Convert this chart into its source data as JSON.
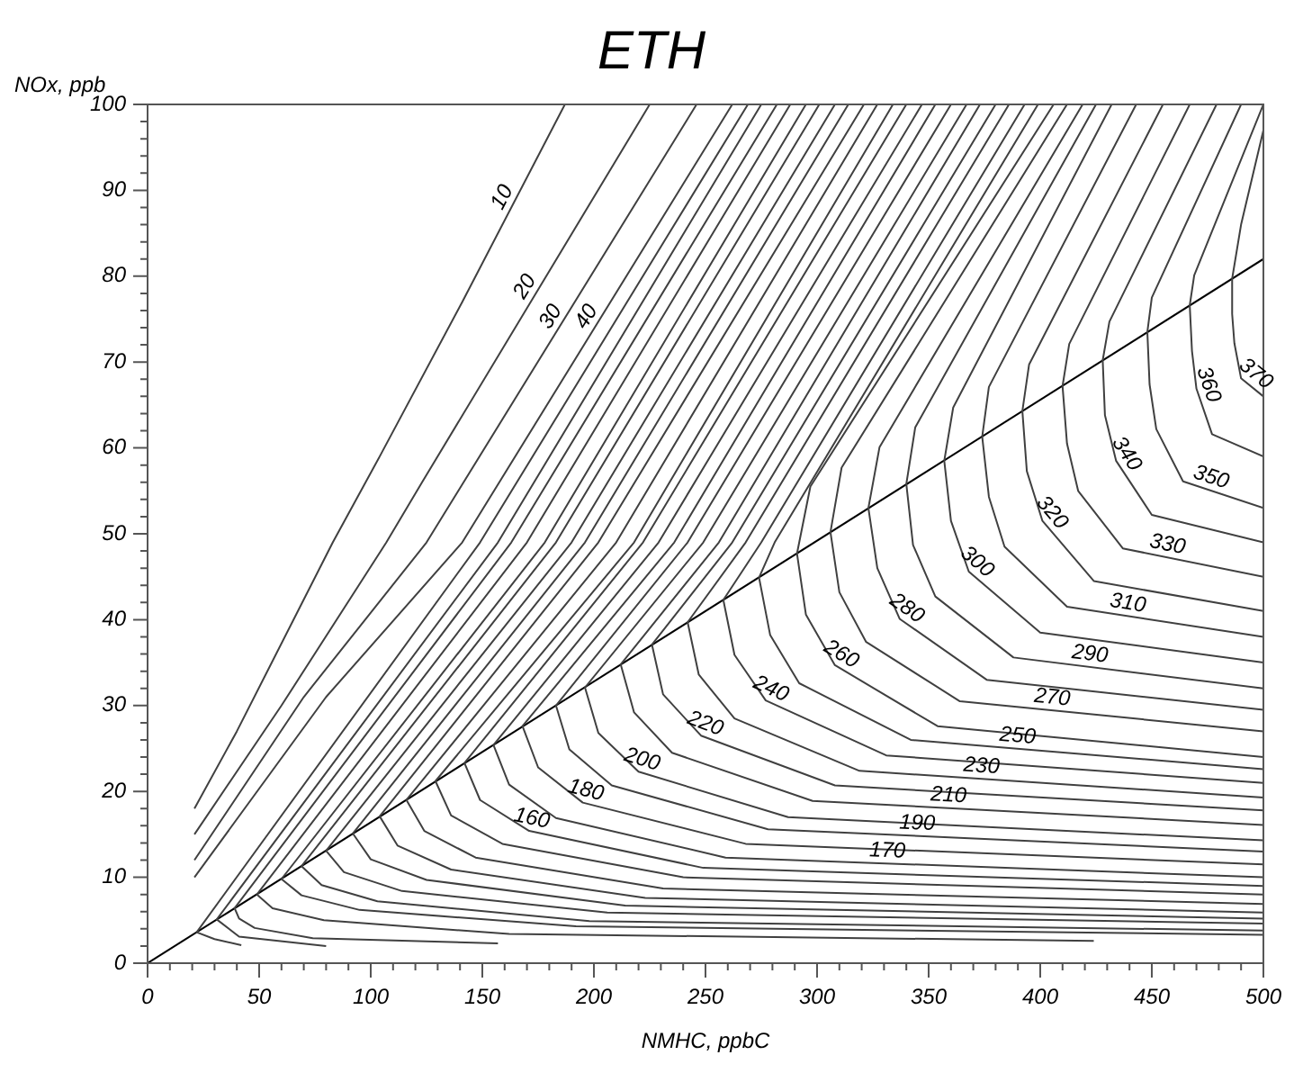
{
  "chart_data": {
    "type": "line",
    "title": "ETH",
    "xlabel": "NMHC, ppbC",
    "ylabel": "NOx, ppb",
    "xlim": [
      0,
      500
    ],
    "ylim": [
      0,
      100
    ],
    "xticks": [
      0,
      {
        "value": 10,
        "label": null
      },
      {
        "value": 20,
        "label": null
      },
      {
        "value": 30,
        "label": null
      },
      {
        "value": 40,
        "label": null
      },
      50,
      {
        "value": 60,
        "label": null
      },
      {
        "value": 70,
        "label": null
      },
      {
        "value": 80,
        "label": null
      },
      {
        "value": 90,
        "label": null
      },
      100,
      {
        "value": 110,
        "label": null
      },
      {
        "value": 120,
        "label": null
      },
      {
        "value": 130,
        "label": null
      },
      {
        "value": 140,
        "label": null
      },
      150,
      {
        "value": 160,
        "label": null
      },
      {
        "value": 170,
        "label": null
      },
      {
        "value": 180,
        "label": null
      },
      {
        "value": 190,
        "label": null
      },
      200,
      {
        "value": 210,
        "label": null
      },
      {
        "value": 220,
        "label": null
      },
      {
        "value": 230,
        "label": null
      },
      {
        "value": 240,
        "label": null
      },
      250,
      {
        "value": 260,
        "label": null
      },
      {
        "value": 270,
        "label": null
      },
      {
        "value": 280,
        "label": null
      },
      {
        "value": 290,
        "label": null
      },
      300,
      {
        "value": 310,
        "label": null
      },
      {
        "value": 320,
        "label": null
      },
      {
        "value": 330,
        "label": null
      },
      {
        "value": 340,
        "label": null
      },
      350,
      {
        "value": 360,
        "label": null
      },
      {
        "value": 370,
        "label": null
      },
      {
        "value": 380,
        "label": null
      },
      {
        "value": 390,
        "label": null
      },
      400,
      {
        "value": 410,
        "label": null
      },
      {
        "value": 420,
        "label": null
      },
      {
        "value": 430,
        "label": null
      },
      {
        "value": 440,
        "label": null
      },
      450,
      {
        "value": 460,
        "label": null
      },
      {
        "value": 470,
        "label": null
      },
      {
        "value": 480,
        "label": null
      },
      {
        "value": 490,
        "label": null
      },
      500
    ],
    "yticks": [
      0,
      {
        "value": 2,
        "label": null
      },
      {
        "value": 4,
        "label": null
      },
      {
        "value": 6,
        "label": null
      },
      {
        "value": 8,
        "label": null
      },
      10,
      {
        "value": 12,
        "label": null
      },
      {
        "value": 14,
        "label": null
      },
      {
        "value": 16,
        "label": null
      },
      {
        "value": 18,
        "label": null
      },
      20,
      {
        "value": 22,
        "label": null
      },
      {
        "value": 24,
        "label": null
      },
      {
        "value": 26,
        "label": null
      },
      {
        "value": 28,
        "label": null
      },
      30,
      {
        "value": 32,
        "label": null
      },
      {
        "value": 34,
        "label": null
      },
      {
        "value": 36,
        "label": null
      },
      {
        "value": 38,
        "label": null
      },
      40,
      {
        "value": 42,
        "label": null
      },
      {
        "value": 44,
        "label": null
      },
      {
        "value": 46,
        "label": null
      },
      {
        "value": 48,
        "label": null
      },
      50,
      {
        "value": 52,
        "label": null
      },
      {
        "value": 54,
        "label": null
      },
      {
        "value": 56,
        "label": null
      },
      {
        "value": 58,
        "label": null
      },
      60,
      {
        "value": 62,
        "label": null
      },
      {
        "value": 64,
        "label": null
      },
      {
        "value": 66,
        "label": null
      },
      {
        "value": 68,
        "label": null
      },
      70,
      {
        "value": 72,
        "label": null
      },
      {
        "value": 74,
        "label": null
      },
      {
        "value": 76,
        "label": null
      },
      {
        "value": 78,
        "label": null
      },
      80,
      {
        "value": 82,
        "label": null
      },
      {
        "value": 84,
        "label": null
      },
      {
        "value": 86,
        "label": null
      },
      {
        "value": 88,
        "label": null
      },
      90,
      {
        "value": 92,
        "label": null
      },
      {
        "value": 94,
        "label": null
      },
      {
        "value": 96,
        "label": null
      },
      {
        "value": 98,
        "label": null
      },
      100
    ],
    "grid": false,
    "legend": false,
    "marker": "none",
    "line_style": "solid",
    "series": [
      {
        "name": "10",
        "color": "#404040",
        "x": [
          187,
          141,
          104,
          83,
          40,
          21
        ],
        "values": [
          100,
          77,
          59,
          49,
          27,
          18
        ]
      },
      {
        "name": "20",
        "color": "#404040",
        "x": [
          225,
          123,
          107,
          60,
          21
        ],
        "values": [
          100,
          56,
          49,
          30,
          15
        ]
      },
      {
        "name": "30",
        "color": "#404040",
        "x": [
          246,
          125,
          70,
          21
        ],
        "values": [
          100,
          49,
          31,
          12
        ]
      },
      {
        "name": "40",
        "color": "#404040",
        "x": [
          262,
          141,
          80,
          21
        ],
        "values": [
          100,
          49,
          31,
          10
        ]
      },
      {
        "color": "#404040",
        "x": [
          269,
          149,
          22,
          30,
          42
        ],
        "values": [
          100,
          49,
          3.6,
          2.8,
          2.1
        ]
      },
      {
        "color": "#404040",
        "x": [
          275,
          157,
          31,
          41,
          80
        ],
        "values": [
          100,
          49,
          5.1,
          3.1,
          2.0
        ]
      },
      {
        "color": "#404040",
        "x": [
          282,
          163,
          39,
          41,
          48,
          74,
          157
        ],
        "values": [
          100,
          49,
          6.4,
          5.2,
          4.1,
          2.9,
          2.3
        ]
      },
      {
        "color": "#404040",
        "x": [
          288,
          170,
          49,
          56,
          79,
          162,
          424
        ],
        "values": [
          100,
          49,
          8.0,
          6.4,
          5.0,
          3.4,
          2.6
        ]
      },
      {
        "color": "#404040",
        "x": [
          295,
          178,
          60,
          69,
          95,
          192,
          500
        ],
        "values": [
          100,
          49,
          9.8,
          7.9,
          6.2,
          4.3,
          3.3
        ]
      },
      {
        "color": "#404040",
        "x": [
          301,
          183,
          69,
          78,
          103,
          198,
          500
        ],
        "values": [
          100,
          49,
          11.3,
          9.1,
          7.2,
          4.9,
          3.8
        ]
      },
      {
        "color": "#404040",
        "x": [
          308,
          190,
          80,
          88,
          114,
          206,
          500
        ],
        "values": [
          100,
          49,
          13.1,
          10.6,
          8.4,
          5.9,
          4.6
        ]
      },
      {
        "color": "#404040",
        "x": [
          314,
          196,
          92,
          100,
          125,
          214,
          500
        ],
        "values": [
          100,
          49,
          15.1,
          12.1,
          9.7,
          6.7,
          5.2
        ]
      },
      {
        "color": "#404040",
        "x": [
          321,
          202,
          104,
          112,
          136,
          223,
          500
        ],
        "values": [
          100,
          49,
          17.1,
          13.7,
          10.9,
          7.6,
          5.9
        ]
      },
      {
        "color": "#404040",
        "x": [
          327,
          210,
          116,
          124,
          147,
          231,
          500
        ],
        "values": [
          100,
          49,
          19.0,
          15.4,
          12.3,
          8.7,
          6.9
        ]
      },
      {
        "color": "#404040",
        "x": [
          334,
          218,
          129,
          136,
          159,
          240,
          500
        ],
        "values": [
          100,
          49,
          21.2,
          17.2,
          13.9,
          10.0,
          8
        ]
      },
      {
        "name": "160",
        "color": "#404040",
        "x": [
          340,
          222,
          142,
          149,
          171,
          249,
          500
        ],
        "values": [
          100,
          49,
          23.3,
          19.0,
          15.4,
          11.1,
          9
        ]
      },
      {
        "name": "170",
        "color": "#404040",
        "x": [
          347,
          229,
          155,
          162,
          183,
          259,
          500
        ],
        "values": [
          100,
          49,
          25.4,
          20.8,
          16.9,
          12.3,
          10
        ]
      },
      {
        "name": "180",
        "color": "#404040",
        "x": [
          353,
          236,
          168,
          175,
          195,
          268,
          500
        ],
        "values": [
          100,
          49,
          27.6,
          22.8,
          18.7,
          13.9,
          11.5
        ]
      },
      {
        "name": "190",
        "color": "#404040",
        "x": [
          360,
          242,
          183,
          189,
          208,
          278,
          500
        ],
        "values": [
          100,
          49,
          30.0,
          24.9,
          20.7,
          15.6,
          13
        ]
      },
      {
        "name": "200",
        "color": "#404040",
        "x": [
          367,
          249,
          196,
          202,
          220,
          287,
          500
        ],
        "values": [
          100,
          49,
          32.1,
          26.8,
          22.3,
          17.0,
          14.3
        ]
      },
      {
        "name": "210",
        "color": "#404040",
        "x": [
          373,
          256,
          212,
          218,
          235,
          298,
          500
        ],
        "values": [
          100,
          49,
          34.8,
          29.2,
          24.5,
          18.9,
          16.1
        ]
      },
      {
        "name": "220",
        "color": "#404040",
        "x": [
          380,
          262,
          226,
          231,
          248,
          308,
          500
        ],
        "values": [
          100,
          49,
          37.1,
          31.3,
          26.5,
          20.7,
          17.8
        ]
      },
      {
        "name": "230",
        "color": "#404040",
        "x": [
          386,
          268,
          242,
          247,
          263,
          319,
          500
        ],
        "values": [
          100,
          49,
          39.7,
          33.6,
          28.5,
          22.4,
          19.3
        ]
      },
      {
        "name": "240",
        "color": "#404040",
        "x": [
          393,
          275,
          258,
          263,
          277,
          331,
          500
        ],
        "values": [
          100,
          49,
          42.3,
          35.9,
          30.6,
          24.2,
          21
        ]
      },
      {
        "name": "250",
        "color": "#404040",
        "x": [
          399,
          281,
          274,
          279,
          292,
          342,
          500
        ],
        "values": [
          100,
          49,
          44.9,
          38.2,
          32.6,
          26.0,
          22.6
        ]
      },
      {
        "name": "260",
        "color": "#404040",
        "x": [
          406,
          297,
          291,
          295,
          308,
          354,
          500
        ],
        "values": [
          100,
          55.5,
          47.7,
          40.6,
          34.7,
          27.6,
          24
        ]
      },
      {
        "name": "270",
        "color": "#404040",
        "x": [
          412,
          311,
          306,
          310,
          322,
          364,
          500
        ],
        "values": [
          100,
          57.7,
          50.2,
          43.2,
          37.4,
          30.5,
          27
        ]
      },
      {
        "name": "280",
        "color": "#404040",
        "x": [
          419,
          328,
          323,
          327,
          337,
          376,
          500
        ],
        "values": [
          100,
          60.1,
          53.0,
          46.0,
          40.1,
          33.0,
          29.5
        ]
      },
      {
        "name": "290",
        "color": "#404040",
        "x": [
          425,
          344,
          340,
          343,
          353,
          388,
          500
        ],
        "values": [
          100,
          62.4,
          55.8,
          48.7,
          42.7,
          35.6,
          32
        ]
      },
      {
        "name": "300",
        "color": "#404040",
        "x": [
          432,
          361,
          357,
          360,
          368,
          400,
          500
        ],
        "values": [
          100,
          64.7,
          58.5,
          51.5,
          45.6,
          38.5,
          35
        ]
      },
      {
        "name": "310",
        "color": "#404040",
        "x": [
          443,
          377,
          374,
          377,
          384,
          412,
          500
        ],
        "values": [
          100,
          67.1,
          61.3,
          54.3,
          48.5,
          41.5,
          38
        ]
      },
      {
        "name": "320",
        "color": "#404040",
        "x": [
          455,
          395,
          392,
          394,
          401,
          424,
          500
        ],
        "values": [
          100,
          69.7,
          64.3,
          57.3,
          51.5,
          44.5,
          41
        ]
      },
      {
        "name": "330",
        "color": "#404040",
        "x": [
          467,
          413,
          410,
          412,
          417,
          437,
          500
        ],
        "values": [
          100,
          72.1,
          67.2,
          60.5,
          55.0,
          48.3,
          45
        ]
      },
      {
        "name": "340",
        "color": "#404040",
        "x": [
          479,
          431,
          428,
          429,
          434,
          450,
          500
        ],
        "values": [
          100,
          74.7,
          70.2,
          63.8,
          58.5,
          52.2,
          49
        ]
      },
      {
        "name": "350",
        "color": "#404040",
        "x": [
          490,
          450,
          448,
          449,
          452,
          464,
          500
        ],
        "values": [
          100,
          77.5,
          73.5,
          67.4,
          62.2,
          56.1,
          53
        ]
      },
      {
        "name": "360",
        "color": "#404040",
        "x": [
          500,
          469,
          467,
          468,
          470,
          477,
          500
        ],
        "values": [
          100,
          80.1,
          76.6,
          71.3,
          66.9,
          61.6,
          59
        ]
      },
      {
        "name": "370",
        "color": "#404040",
        "x": [
          500,
          490,
          486,
          486,
          487,
          490,
          500
        ],
        "values": [
          97,
          86,
          79.7,
          75.6,
          72.2,
          68.1,
          66
        ]
      },
      {
        "color": "#000000",
        "x": [
          0,
          500
        ],
        "values": [
          0,
          82
        ]
      }
    ]
  }
}
